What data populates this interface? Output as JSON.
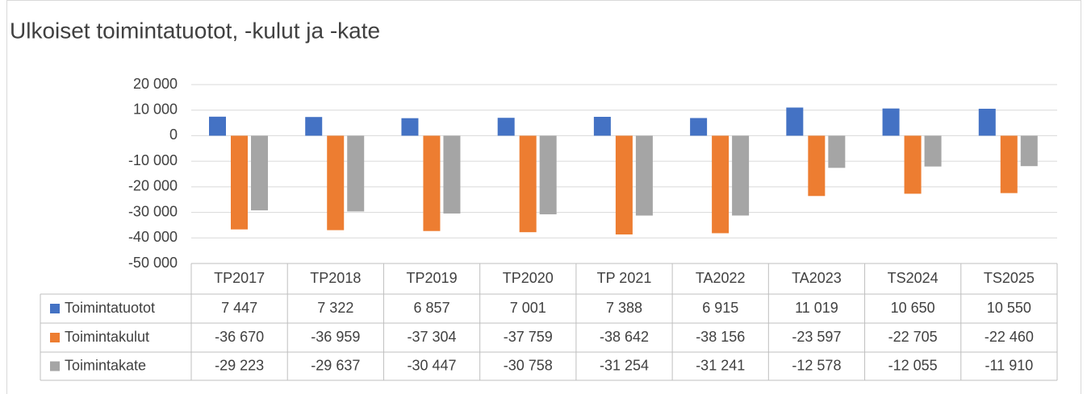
{
  "chart_data": {
    "type": "bar",
    "title": "Ulkoiset toimintatuotot, -kulut ja -kate",
    "categories": [
      "TP2017",
      "TP2018",
      "TP2019",
      "TP2020",
      "TP 2021",
      "TA2022",
      "TA2023",
      "TS2024",
      "TS2025"
    ],
    "series": [
      {
        "name": "Toimintatuotot",
        "color": "#4472c4",
        "values": [
          7447,
          7322,
          6857,
          7001,
          7388,
          6915,
          11019,
          10650,
          10550
        ],
        "value_labels": [
          "7 447",
          "7 322",
          "6 857",
          "7 001",
          "7 388",
          "6 915",
          "11 019",
          "10 650",
          "10 550"
        ]
      },
      {
        "name": "Toimintakulut",
        "color": "#ed7d31",
        "values": [
          -36670,
          -36959,
          -37304,
          -37759,
          -38642,
          -38156,
          -23597,
          -22705,
          -22460
        ],
        "value_labels": [
          "-36 670",
          "-36 959",
          "-37 304",
          "-37 759",
          "-38 642",
          "-38 156",
          "-23 597",
          "-22 705",
          "-22 460"
        ]
      },
      {
        "name": "Toimintakate",
        "color": "#a5a5a5",
        "values": [
          -29223,
          -29637,
          -30447,
          -30758,
          -31254,
          -31241,
          -12578,
          -12055,
          -11910
        ],
        "value_labels": [
          "-29 223",
          "-29 637",
          "-30 447",
          "-30 758",
          "-31 254",
          "-31 241",
          "-12 578",
          "-12 055",
          "-11 910"
        ]
      }
    ],
    "ylim": [
      -50000,
      20000
    ],
    "yticks": [
      {
        "value": -50000,
        "label": "-50 000"
      },
      {
        "value": -40000,
        "label": "-40 000"
      },
      {
        "value": -30000,
        "label": "-30 000"
      },
      {
        "value": -20000,
        "label": "-20 000"
      },
      {
        "value": -10000,
        "label": "-10 000"
      },
      0,
      {
        "value": 10000,
        "label": "10 000"
      },
      {
        "value": 20000,
        "label": "20 000"
      }
    ],
    "grid": true
  }
}
